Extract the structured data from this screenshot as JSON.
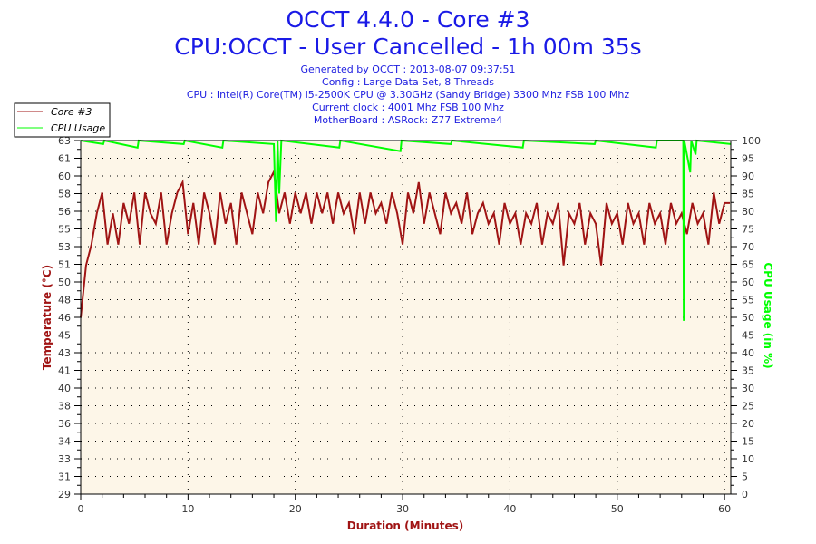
{
  "header": {
    "title1": "OCCT 4.4.0 - Core #3",
    "title2": "CPU:OCCT - User Cancelled - 1h 00m 35s",
    "info": [
      "Generated by OCCT : 2013-08-07 09:37:51",
      "Config : Large Data Set, 8 Threads",
      "CPU : Intel(R) Core(TM) i5-2500K CPU @ 3.30GHz (Sandy Bridge) 3300 Mhz FSB 100 Mhz",
      "Current clock : 4001 Mhz FSB 100 Mhz",
      "MotherBoard : ASRock: Z77 Extreme4"
    ]
  },
  "chart_data": {
    "type": "line",
    "xlabel": "Duration (Minutes)",
    "ylabel_left": "Temperature (°C)",
    "ylabel_right": "CPU Usage (in %)",
    "xlim": [
      0,
      60.58
    ],
    "ylim_left": [
      29,
      63
    ],
    "ylim_right": [
      0,
      100
    ],
    "x_ticks": [
      "0",
      "10",
      "20",
      "30",
      "40",
      "50",
      "60"
    ],
    "y_left_ticks": [
      "29",
      "31",
      "33",
      "34",
      "36",
      "38",
      "40",
      "41",
      "43",
      "45",
      "46",
      "48",
      "50",
      "51",
      "53",
      "55",
      "56",
      "58",
      "60",
      "61",
      "63"
    ],
    "y_right_ticks": [
      "0",
      "5",
      "10",
      "15",
      "20",
      "25",
      "30",
      "35",
      "40",
      "45",
      "50",
      "55",
      "60",
      "65",
      "70",
      "75",
      "80",
      "85",
      "90",
      "95",
      "100"
    ],
    "grid": true,
    "legend": {
      "placement": "top-left",
      "entries": [
        "Core #3",
        "CPU Usage"
      ]
    },
    "colors": {
      "temp": "#a01414",
      "cpu": "#00ff00",
      "plot_bg": "#fdf6e8"
    },
    "series": [
      {
        "name": "Core #3",
        "axis": "left",
        "x_step": 0.5,
        "values": [
          46,
          51,
          53,
          56,
          58,
          53,
          56,
          53,
          57,
          55,
          58,
          53,
          58,
          56,
          55,
          58,
          53,
          56,
          58,
          59,
          54,
          57,
          53,
          58,
          56,
          53,
          58,
          55,
          57,
          53,
          58,
          56,
          54,
          58,
          56,
          59,
          60,
          56,
          58,
          55,
          58,
          56,
          58,
          55,
          58,
          56,
          58,
          55,
          58,
          56,
          57,
          54,
          58,
          55,
          58,
          56,
          57,
          55,
          58,
          56,
          53,
          58,
          56,
          59,
          55,
          58,
          56,
          54,
          58,
          56,
          57,
          55,
          58,
          54,
          56,
          57,
          55,
          56,
          53,
          57,
          55,
          56,
          53,
          56,
          55,
          57,
          53,
          56,
          55,
          57,
          51,
          56,
          55,
          57,
          53,
          56,
          55,
          51,
          57,
          55,
          56,
          53,
          57,
          55,
          56,
          53,
          57,
          55,
          56,
          53,
          57,
          55,
          56,
          54,
          57,
          55,
          56,
          53,
          58,
          55,
          57,
          57
        ]
      },
      {
        "name": "CPU Usage",
        "axis": "right",
        "points": [
          [
            0,
            100
          ],
          [
            2.1,
            99
          ],
          [
            2.2,
            100
          ],
          [
            5.3,
            98
          ],
          [
            5.4,
            100
          ],
          [
            9.6,
            99
          ],
          [
            9.7,
            100
          ],
          [
            13.2,
            98
          ],
          [
            13.3,
            100
          ],
          [
            18.0,
            99
          ],
          [
            18.2,
            77
          ],
          [
            18.35,
            100
          ],
          [
            18.5,
            85
          ],
          [
            18.7,
            100
          ],
          [
            24.1,
            98
          ],
          [
            24.2,
            100
          ],
          [
            29.8,
            97
          ],
          [
            29.9,
            100
          ],
          [
            34.5,
            99
          ],
          [
            34.6,
            100
          ],
          [
            41.2,
            98
          ],
          [
            41.3,
            100
          ],
          [
            47.9,
            99
          ],
          [
            48.0,
            100
          ],
          [
            53.6,
            98
          ],
          [
            53.7,
            100
          ],
          [
            56.15,
            100
          ],
          [
            56.2,
            49
          ],
          [
            56.25,
            100
          ],
          [
            56.8,
            91
          ],
          [
            56.9,
            100
          ],
          [
            57.3,
            96
          ],
          [
            57.4,
            100
          ],
          [
            60.58,
            99
          ]
        ]
      }
    ]
  }
}
